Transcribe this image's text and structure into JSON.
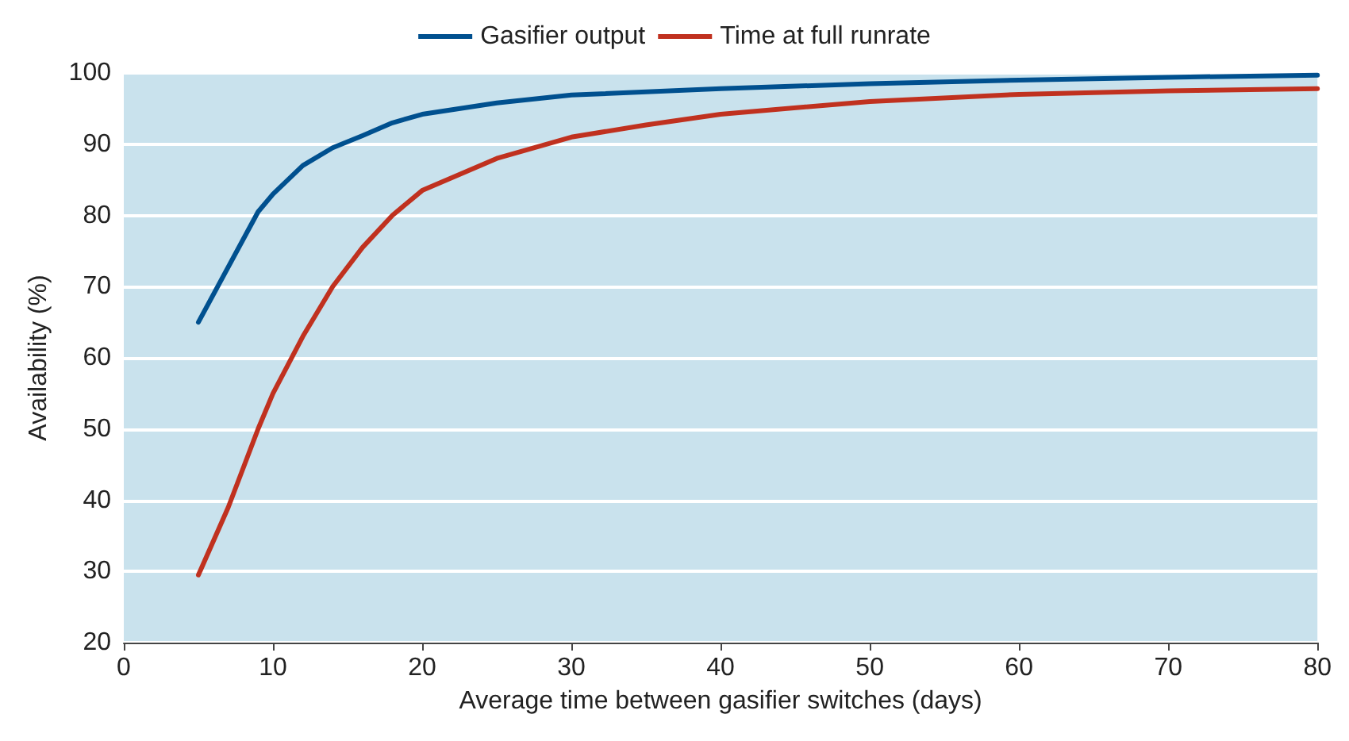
{
  "chart_data": {
    "type": "line",
    "xlabel": "Average time between gasifier switches (days)",
    "ylabel": "Availability (%)",
    "xlim": [
      0,
      80
    ],
    "xticks": [
      0,
      10,
      20,
      30,
      40,
      50,
      60,
      70,
      80
    ],
    "ylim": [
      20,
      100
    ],
    "yticks": [
      20,
      30,
      40,
      50,
      60,
      70,
      80,
      90,
      100
    ],
    "grid": "y",
    "legend": "top",
    "marker": "none",
    "line_style": "solid",
    "series": [
      {
        "name": "Gasifier output",
        "color": "#00508f",
        "x": [
          5,
          9,
          10,
          12,
          14,
          16,
          18,
          20,
          25,
          30,
          40,
          50,
          60,
          70,
          80
        ],
        "values": [
          65,
          80.5,
          83,
          87,
          89.5,
          91.2,
          93,
          94.2,
          95.8,
          96.9,
          97.8,
          98.5,
          99,
          99.4,
          99.7
        ]
      },
      {
        "name": "Time at full runrate",
        "color": "#c0311f",
        "x": [
          5,
          7,
          9,
          10,
          12,
          14,
          16,
          18,
          20,
          25,
          30,
          35,
          40,
          50,
          60,
          70,
          80
        ],
        "values": [
          29.5,
          39,
          50,
          55,
          63,
          70,
          75.5,
          80,
          83.5,
          88,
          91,
          92.7,
          94.2,
          96,
          97,
          97.5,
          97.8
        ]
      }
    ]
  }
}
